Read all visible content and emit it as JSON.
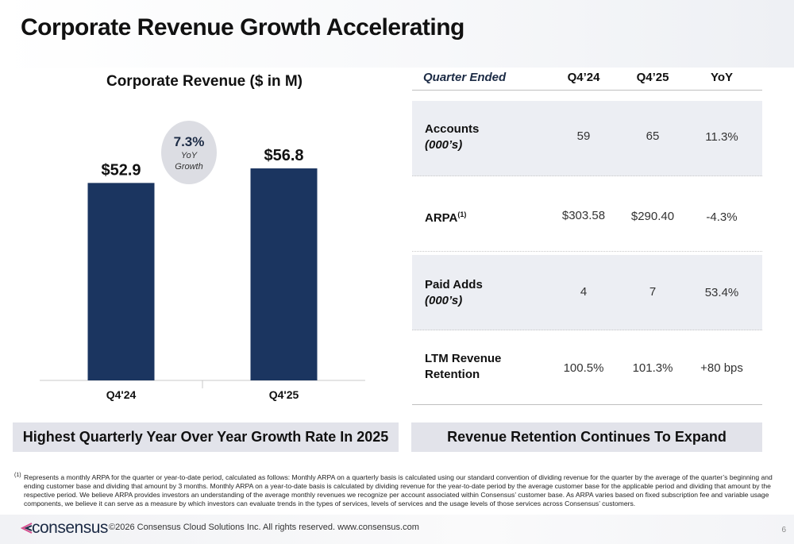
{
  "title": "Corporate Revenue Growth Accelerating",
  "chart_data": {
    "type": "bar",
    "title": "Corporate Revenue ($ in M)",
    "categories": [
      "Q4'24",
      "Q4'25"
    ],
    "values": [
      52.9,
      56.8
    ],
    "value_labels": [
      "$52.9",
      "$56.8"
    ],
    "ylim": [
      0,
      70
    ],
    "bar_color": "#1b3560",
    "grid": false,
    "annotation": {
      "value": "7.3%",
      "line1": "YoY",
      "line2": "Growth"
    }
  },
  "table": {
    "headers": {
      "label": "Quarter Ended",
      "col1": "Q4’24",
      "col2": "Q4’25",
      "col3": "YoY"
    },
    "rows": [
      {
        "label": "Accounts",
        "sublabel": "(000’s)",
        "sup": "",
        "q4_24": "59",
        "q4_25": "65",
        "yoy": "11.3%"
      },
      {
        "label": "ARPA",
        "sublabel": "",
        "sup": "(1)",
        "q4_24": "$303.58",
        "q4_25": "$290.40",
        "yoy": "-4.3%"
      },
      {
        "label": "Paid Adds",
        "sublabel": "(000’s)",
        "sup": "",
        "q4_24": "4",
        "q4_25": "7",
        "yoy": "53.4%"
      },
      {
        "label": "LTM Revenue",
        "sublabel": "Retention",
        "sup": "",
        "q4_24": "100.5%",
        "q4_25": "101.3%",
        "yoy": "+80 bps"
      }
    ]
  },
  "callouts": {
    "left": "Highest Quarterly Year Over Year Growth Rate In 2025",
    "right": "Revenue Retention Continues To Expand"
  },
  "footnote": {
    "marker": "(1)",
    "text": "Represents a monthly ARPA for the quarter or year-to-date period, calculated as follows: Monthly ARPA on a quarterly basis is calculated using our standard convention of dividing revenue for the quarter by the average of the quarter’s beginning and ending customer base and dividing that amount by 3 months. Monthly ARPA on a year-to-date basis is calculated by dividing revenue for the year-to-date period by the average customer base for the applicable period and dividing that amount by the respective period. We believe ARPA provides investors an understanding of the average monthly revenues we recognize per account associated within Consensus’ customer base. As ARPA varies based on fixed subscription fee and variable usage components, we believe it can serve as a measure by which investors can evaluate trends in the types of services, levels of services and the usage levels of those services across Consensus’ customers."
  },
  "footer": {
    "logo": "consensus",
    "copyright": "©2026 Consensus Cloud Solutions Inc. All rights reserved. www.consensus.com",
    "page": "6"
  },
  "colors": {
    "accent": "#1b3560",
    "callout_bg": "#e2e3ea",
    "row_shade": "#eceef3",
    "logo_mark": "#d64f8f"
  }
}
